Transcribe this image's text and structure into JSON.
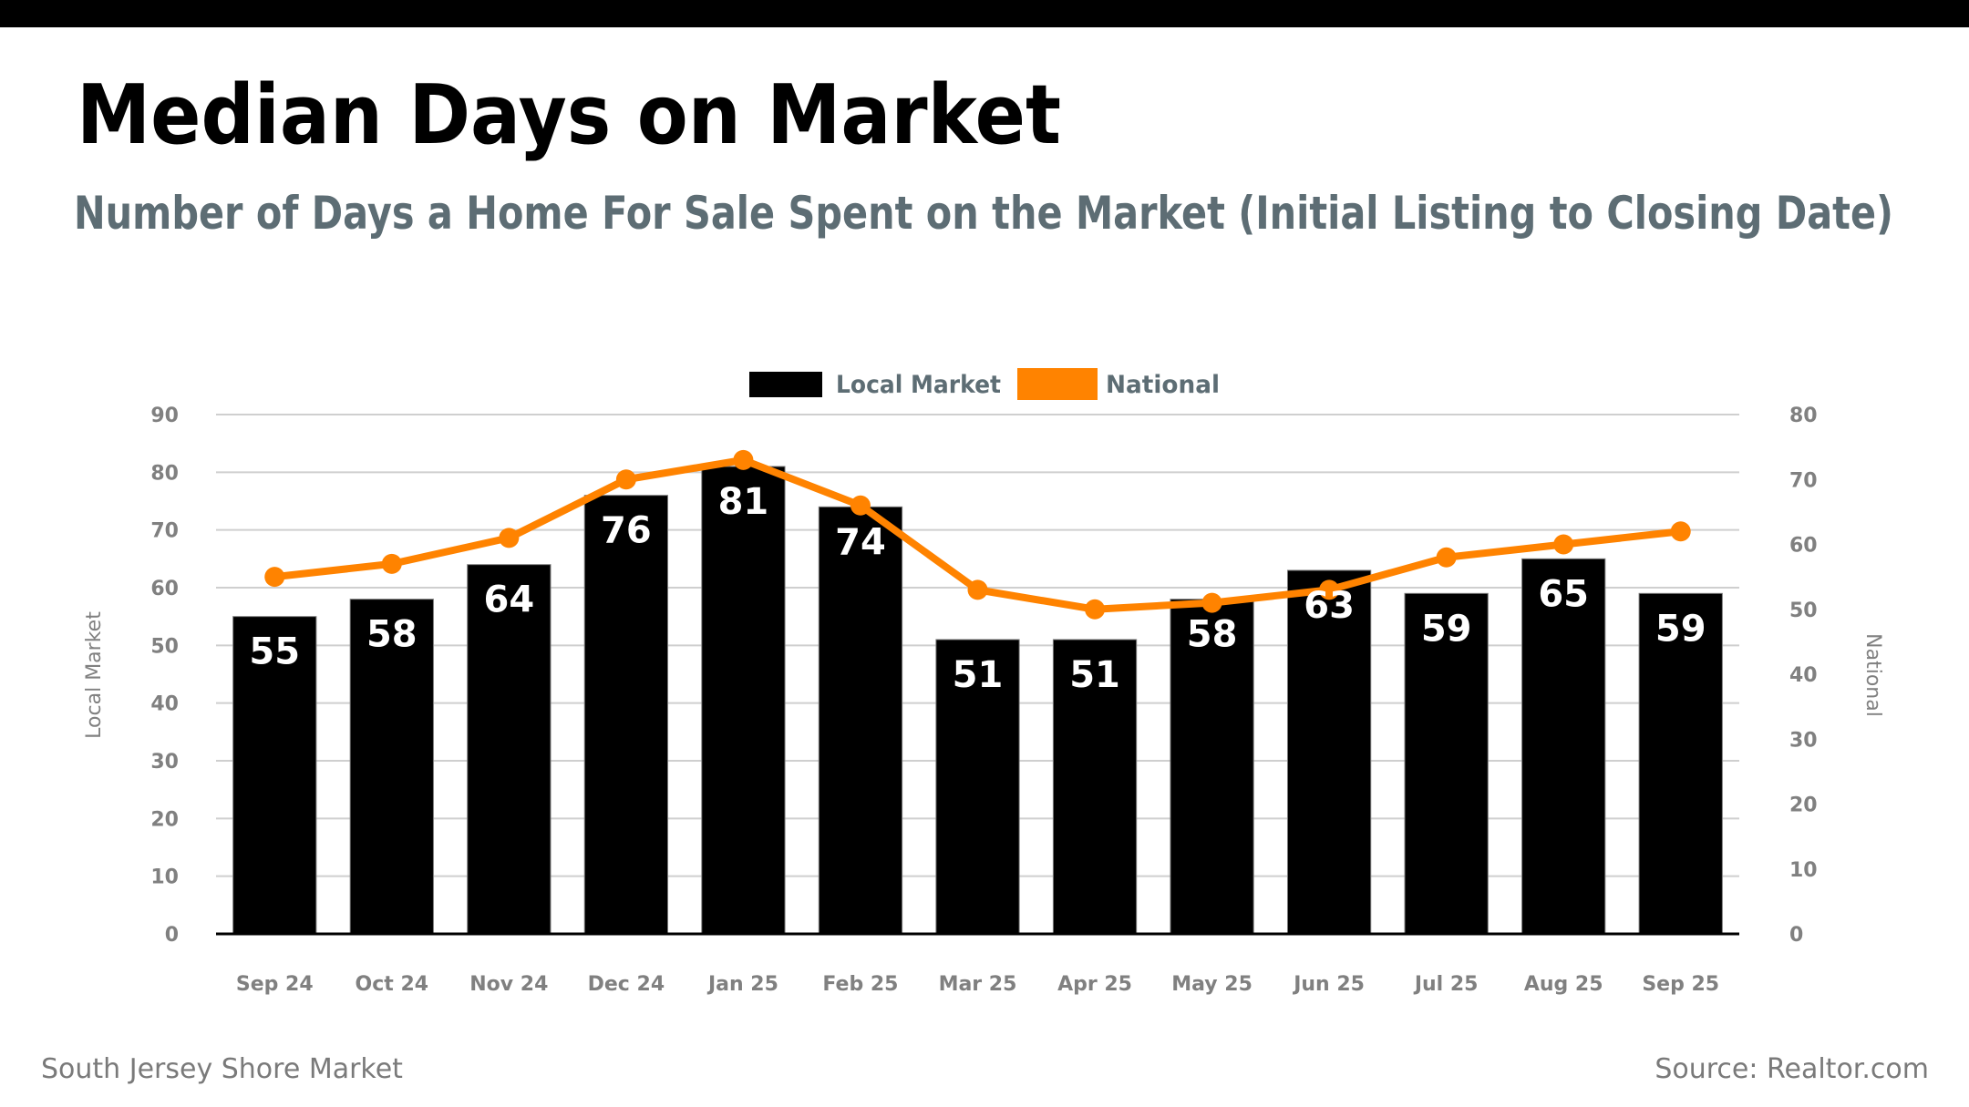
{
  "header": {
    "title": "Median Days on Market",
    "subtitle": "Number of Days a Home For Sale Spent on the Market (Initial Listing to Closing Date)"
  },
  "footer": {
    "market": "South Jersey Shore Market",
    "source": "Source: Realtor.com"
  },
  "colors": {
    "title": "#000000",
    "subtitle": "#5d6d74",
    "local": "#000000",
    "national": "#ff8300",
    "tick": "#808080"
  },
  "chart_data": {
    "type": "bar",
    "title": "Median Days on Market",
    "subtitle": "Number of Days a Home For Sale Spent on the Market (Initial Listing to Closing Date)",
    "categories": [
      "Sep 24",
      "Oct 24",
      "Nov 24",
      "Dec 24",
      "Jan 25",
      "Feb 25",
      "Mar 25",
      "Apr 25",
      "May 25",
      "Jun 25",
      "Jul 25",
      "Aug 25",
      "Sep 25"
    ],
    "series": [
      {
        "name": "Local Market",
        "type": "bar",
        "axis": "left",
        "color": "#000000",
        "values": [
          55,
          58,
          64,
          76,
          81,
          74,
          51,
          51,
          58,
          63,
          59,
          65,
          59
        ],
        "data_labels": true
      },
      {
        "name": "National",
        "type": "line",
        "axis": "right",
        "color": "#ff8300",
        "values": [
          55,
          57,
          61,
          70,
          73,
          66,
          53,
          50,
          51,
          53,
          58,
          60,
          62
        ],
        "data_labels": false
      }
    ],
    "left_axis": {
      "label": "Local Market",
      "range": [
        0,
        90
      ],
      "ticks": [
        0,
        10,
        20,
        30,
        40,
        50,
        60,
        70,
        80,
        90
      ]
    },
    "right_axis": {
      "label": "National",
      "range": [
        0,
        80
      ],
      "ticks": [
        0,
        10,
        20,
        30,
        40,
        50,
        60,
        70,
        80
      ]
    },
    "grid": true,
    "legend": {
      "position": "top-center",
      "entries": [
        "Local Market",
        "National"
      ]
    }
  }
}
